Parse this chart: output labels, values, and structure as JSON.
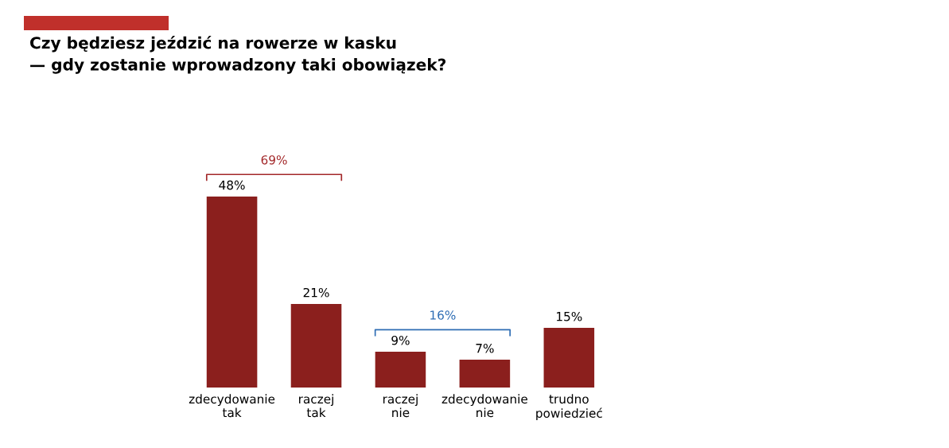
{
  "chart_data": {
    "type": "bar",
    "title": "Czy będziesz jeździć na rowerze w kasku\n— gdy zostanie wprowadzony taki obowiązek?",
    "categories": [
      "zdecydowanie\ntak",
      "raczej\ntak",
      "raczej\nnie",
      "zdecydowanie\nnie",
      "trudno\npowiedzieć"
    ],
    "values": [
      48,
      21,
      9,
      7,
      15
    ],
    "value_labels": [
      "48%",
      "21%",
      "9%",
      "7%",
      "15%"
    ],
    "color": "#8b1f1d",
    "annotations": [
      "69%",
      "16%"
    ],
    "grid": false,
    "legend": false
  }
}
